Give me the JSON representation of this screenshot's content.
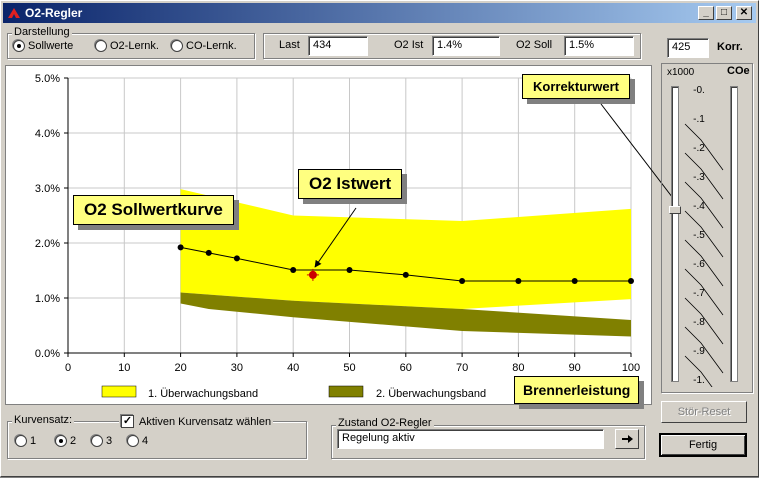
{
  "window": {
    "title": "O2-Regler",
    "buttons": [
      "_",
      "□",
      "✕"
    ]
  },
  "darstellung": {
    "label": "Darstellung",
    "options": [
      "Sollwerte",
      "O2-Lernk.",
      "CO-Lernk."
    ],
    "selected": 0
  },
  "readouts": {
    "last_label": "Last",
    "last_value": "434",
    "ist_label": "O2 Ist",
    "ist_value": "1.4%",
    "soll_label": "O2 Soll",
    "soll_value": "1.5%"
  },
  "korr": {
    "value": "425",
    "label": "Korr.",
    "scale_label": "x1000",
    "co_label": "COe",
    "ticks": [
      "-0.",
      "-.1",
      "-.2",
      "-.3",
      "-.4",
      "-.5",
      "-.6",
      "-.7",
      "-.8",
      "-.9",
      "-1."
    ]
  },
  "callouts": {
    "sollwertkurve": "O2 Sollwertkurve",
    "istwert": "O2 Istwert",
    "korrekturwert": "Korrekturwert",
    "brennerleistung": "Brennerleistung"
  },
  "legend": {
    "band1": "1. Überwachungsband",
    "band2": "2. Überwachungsband"
  },
  "kurvensatz": {
    "label": "Kurvensatz:",
    "checkbox_label": "Aktiven Kurvensatz wählen",
    "checked": true,
    "options": [
      "1",
      "2",
      "3",
      "4"
    ],
    "selected": 1
  },
  "zustand": {
    "label": "Zustand O2-Regler",
    "value": "Regelung aktiv",
    "go_icon": "arrow-right-icon"
  },
  "buttons": {
    "stoer_reset": "Stör-Reset",
    "fertig": "Fertig"
  },
  "colors": {
    "band1": "#ffff00",
    "band2": "#808000",
    "curve": "#000000",
    "ist_marker": "#cc0000"
  },
  "chart_data": {
    "type": "line",
    "x_ticks": [
      "0",
      "10",
      "20",
      "30",
      "40",
      "50",
      "60",
      "70",
      "80",
      "90",
      "100"
    ],
    "y_ticks": [
      "0.0%",
      "1.0%",
      "2.0%",
      "3.0%",
      "4.0%",
      "5.0%"
    ],
    "xlim": [
      0,
      100
    ],
    "ylim": [
      0,
      5
    ],
    "grid": true,
    "sollwert": {
      "x": [
        20,
        25,
        30,
        40,
        50,
        60,
        70,
        80,
        90,
        100
      ],
      "y": [
        1.92,
        1.82,
        1.72,
        1.51,
        1.51,
        1.42,
        1.31,
        1.31,
        1.31,
        1.31
      ]
    },
    "istwert": {
      "x": 43.5,
      "y": 1.42
    },
    "band1_upper": {
      "x": [
        20,
        40,
        70,
        100
      ],
      "y": [
        2.98,
        2.5,
        2.4,
        2.62
      ]
    },
    "band1_lower": {
      "x": [
        20,
        40,
        70,
        100
      ],
      "y": [
        1.1,
        0.95,
        0.8,
        0.98
      ]
    },
    "band2_upper": {
      "x": [
        20,
        40,
        70,
        100
      ],
      "y": [
        1.1,
        0.95,
        0.8,
        0.6
      ]
    },
    "band2_lower": {
      "x": [
        20,
        25,
        40,
        70,
        100
      ],
      "y": [
        0.9,
        0.8,
        0.65,
        0.4,
        0.3
      ]
    }
  }
}
